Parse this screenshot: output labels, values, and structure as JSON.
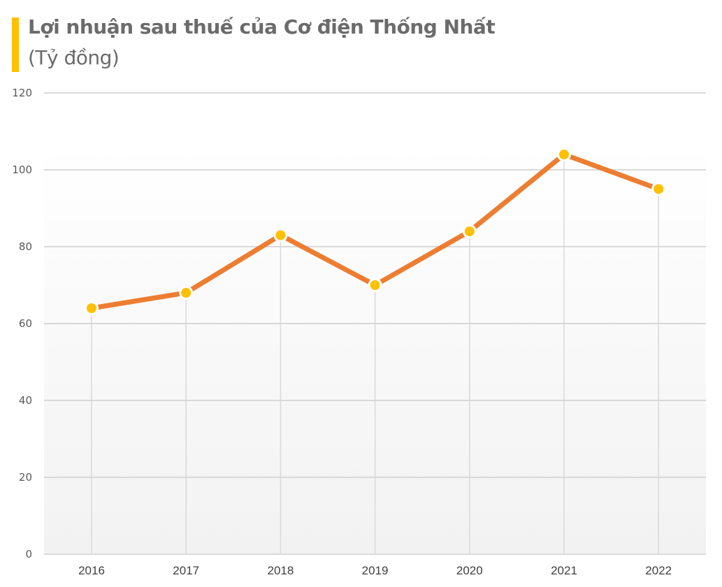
{
  "header": {
    "title": "Lợi nhuận sau thuế của Cơ điện Thống Nhất",
    "subtitle": "(Tỷ đồng)",
    "accent_color": "#FFC000"
  },
  "colors": {
    "line": "#ED7D31",
    "marker_fill": "#FFC000",
    "marker_stroke": "#FFFFFF",
    "gridline": "#D9D9D9",
    "plot_bg_top": "#FFFFFF",
    "plot_bg_bottom": "#F2F2F2"
  },
  "chart_data": {
    "type": "line",
    "title": "Lợi nhuận sau thuế của Cơ điện Thống Nhất",
    "subtitle": "(Tỷ đồng)",
    "xlabel": "",
    "ylabel": "Tỷ đồng",
    "categories": [
      "2016",
      "2017",
      "2018",
      "2019",
      "2020",
      "2021",
      "2022"
    ],
    "series": [
      {
        "name": "Lợi nhuận sau thuế",
        "values": [
          64,
          68,
          83,
          70,
          84,
          104,
          95
        ]
      }
    ],
    "ylim": [
      0,
      120
    ],
    "yticks": [
      0,
      20,
      40,
      60,
      80,
      100,
      120
    ],
    "grid": {
      "horizontal": true,
      "drop_lines": true
    },
    "legend": null,
    "data_labels": false
  }
}
